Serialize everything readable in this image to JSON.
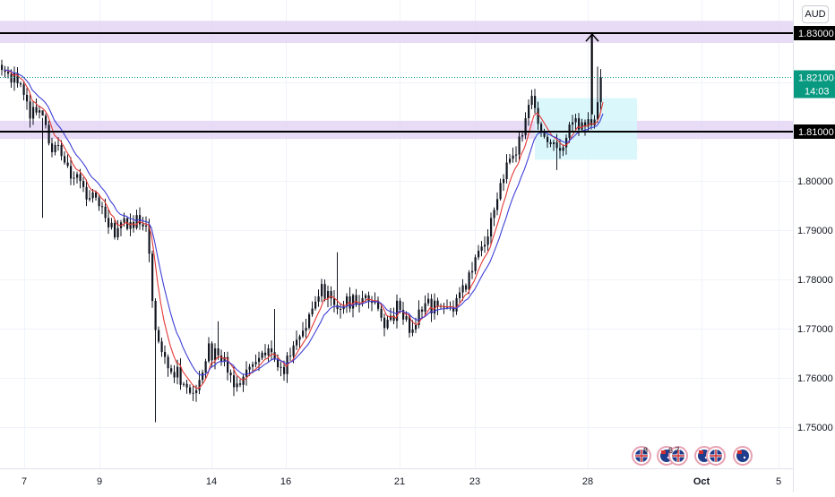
{
  "currency": "AUD",
  "price_labels": {
    "upper_level": "1.83000",
    "lower_level": "1.81000",
    "last_price": "1.82100",
    "countdown": "14:03"
  },
  "colors": {
    "background": "#ffffff",
    "grid": "#f0f3fa",
    "candle": "#131722",
    "ma_fast": "#e53935",
    "ma_slow": "#3f3fd8",
    "zone_fill": "#e3d5f5",
    "level_line": "#000000",
    "box_fill": "#d6f6fb",
    "last_price": "#089981",
    "axis_text": "#131722"
  },
  "event_icons": [
    {
      "icons": [
        "flag-uk-icon"
      ],
      "count": "8"
    },
    {
      "icons": [
        "flag-au-icon",
        "flag-uk-icon"
      ],
      "count": "6 7"
    },
    {
      "icons": [
        "flag-au-icon",
        "flag-uk-icon"
      ],
      "count": ""
    },
    {
      "icons": [
        "flag-au-icon"
      ],
      "count": ""
    }
  ],
  "chart_data": {
    "type": "candlestick",
    "x_tick_labels": [
      "7",
      "9",
      "14",
      "16",
      "21",
      "23",
      "28",
      "Oct",
      "5"
    ],
    "y_tick_labels": [
      "1.83000",
      "1.81000",
      "1.80000",
      "1.79000",
      "1.78000",
      "1.77000",
      "1.76000",
      "1.75000"
    ],
    "ylim": [
      1.7435,
      1.8325
    ],
    "grid": true,
    "levels": [
      1.83,
      1.81
    ],
    "zones": [
      [
        1.828,
        1.8325
      ],
      [
        1.8085,
        1.8122
      ]
    ],
    "last_price": 1.821,
    "box": {
      "price_range": [
        1.8043,
        1.8168
      ]
    },
    "series": [
      {
        "color": "#e53935",
        "smoothing": 0.35
      },
      {
        "color": "#3f3fd8",
        "smoothing": 0.18
      }
    ],
    "anchors": [
      [
        0,
        1.822
      ],
      [
        5,
        1.82
      ],
      [
        9,
        1.813
      ],
      [
        12,
        1.814
      ],
      [
        15,
        1.808
      ],
      [
        19,
        1.805
      ],
      [
        23,
        1.801
      ],
      [
        28,
        1.797
      ],
      [
        32,
        1.794
      ],
      [
        36,
        1.79
      ],
      [
        40,
        1.791
      ],
      [
        44,
        1.792
      ],
      [
        46,
        1.791
      ],
      [
        49,
        1.77
      ],
      [
        52,
        1.763
      ],
      [
        56,
        1.761
      ],
      [
        60,
        1.757
      ],
      [
        63,
        1.759
      ],
      [
        66,
        1.766
      ],
      [
        69,
        1.764
      ],
      [
        72,
        1.762
      ],
      [
        75,
        1.758
      ],
      [
        78,
        1.761
      ],
      [
        82,
        1.765
      ],
      [
        86,
        1.764
      ],
      [
        90,
        1.762
      ],
      [
        94,
        1.766
      ],
      [
        98,
        1.773
      ],
      [
        102,
        1.778
      ],
      [
        106,
        1.774
      ],
      [
        110,
        1.776
      ],
      [
        114,
        1.775
      ],
      [
        118,
        1.776
      ],
      [
        122,
        1.771
      ],
      [
        126,
        1.774
      ],
      [
        130,
        1.77
      ],
      [
        134,
        1.774
      ],
      [
        138,
        1.775
      ],
      [
        142,
        1.774
      ],
      [
        146,
        1.776
      ],
      [
        150,
        1.781
      ],
      [
        154,
        1.788
      ],
      [
        158,
        1.797
      ],
      [
        162,
        1.804
      ],
      [
        166,
        1.81
      ],
      [
        169,
        1.816
      ],
      [
        172,
        1.81
      ],
      [
        175,
        1.809
      ],
      [
        178,
        1.807
      ],
      [
        181,
        1.81
      ],
      [
        184,
        1.812
      ],
      [
        187,
        1.811
      ],
      [
        189,
        1.813
      ],
      [
        191,
        1.821
      ]
    ],
    "overrides": [
      {
        "i": 13,
        "h": 1.7925
      },
      {
        "i": 49,
        "l": 1.751
      },
      {
        "i": 69,
        "h": 1.7715
      },
      {
        "i": 87,
        "h": 1.774
      },
      {
        "i": 107,
        "h": 1.7855
      },
      {
        "i": 169,
        "h": 1.8185
      },
      {
        "i": 177,
        "l": 1.8022
      },
      {
        "i": 188,
        "h": 1.83
      },
      {
        "i": 190,
        "h": 1.8232
      }
    ]
  }
}
